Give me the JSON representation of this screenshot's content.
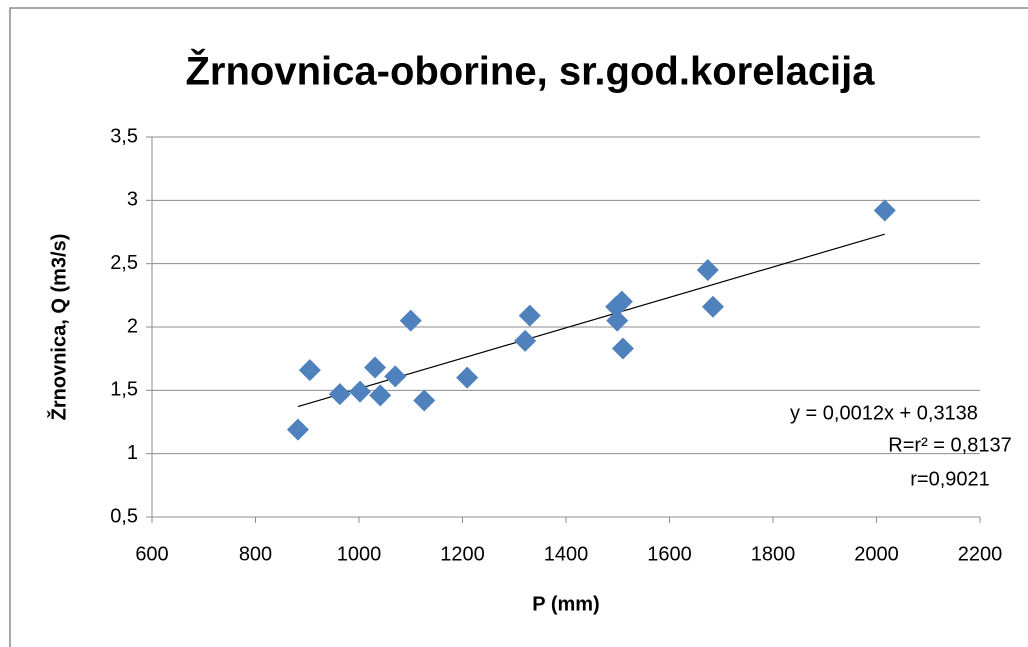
{
  "chart_data": {
    "type": "scatter",
    "title": "Žrnovnica-oborine, sr.god.korelacija",
    "x_label": "P (mm)",
    "y_label": "Žrnovnica, Q (m3/s)",
    "x": [
      882,
      905,
      963,
      1002,
      1031,
      1041,
      1070,
      1100,
      1126,
      1209,
      1321,
      1330,
      1497,
      1499,
      1508,
      1510,
      1674,
      1684,
      2016
    ],
    "values": [
      1.19,
      1.66,
      1.47,
      1.49,
      1.68,
      1.46,
      1.61,
      2.05,
      1.42,
      1.6,
      1.89,
      2.09,
      2.16,
      2.05,
      2.2,
      1.83,
      2.45,
      2.16,
      2.92
    ],
    "color": "#4f81bd",
    "xlim": [
      600,
      2200
    ],
    "xticks": [
      600,
      800,
      1000,
      1200,
      1400,
      1600,
      1800,
      2000,
      2200
    ],
    "ylim": [
      0.5,
      3.5
    ],
    "yticks": [
      {
        "value": 0.5,
        "label": "0,5"
      },
      1,
      {
        "value": 1.5,
        "label": "1,5"
      },
      2,
      {
        "value": 2.5,
        "label": "2,5"
      },
      3,
      {
        "value": 3.5,
        "label": "3,5"
      }
    ],
    "grid": true,
    "trendline": {
      "slope": 0.0012,
      "intercept": 0.3138,
      "color": "#000000"
    },
    "annotations": [
      "y = 0,0012x + 0,3138",
      "R=r² = 0,8137",
      "r=0,9021"
    ]
  }
}
